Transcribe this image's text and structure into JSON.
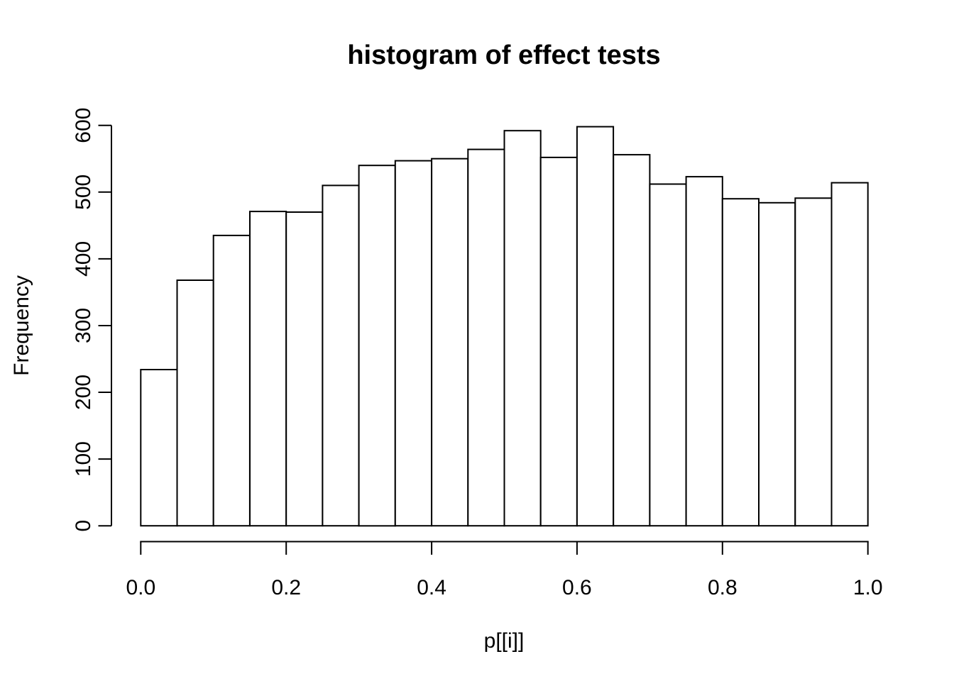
{
  "chart_data": {
    "type": "bar",
    "chart_kind": "histogram",
    "title": "histogram of effect tests",
    "xlabel": "p[[i]]",
    "ylabel": "Frequency",
    "bin_start": 0,
    "bin_width": 0.05,
    "values": [
      234,
      368,
      435,
      471,
      470,
      510,
      540,
      547,
      550,
      564,
      592,
      552,
      598,
      556,
      512,
      523,
      490,
      484,
      491,
      514
    ],
    "x_ticks": [
      0,
      0.2,
      0.4,
      0.6,
      0.8,
      1.0
    ],
    "x_tick_labels": [
      "0.0",
      "0.2",
      "0.4",
      "0.6",
      "0.8",
      "1.0"
    ],
    "y_ticks": [
      0,
      100,
      200,
      300,
      400,
      500,
      600
    ],
    "y_tick_labels": [
      "0",
      "100",
      "200",
      "300",
      "400",
      "500",
      "600"
    ],
    "xlim": [
      0,
      1
    ],
    "ylim": [
      0,
      600
    ],
    "grid": false,
    "legend": null,
    "bar_fill": "#ffffff",
    "bar_stroke": "#000000",
    "axis_color": "#000000",
    "background": "#ffffff"
  }
}
